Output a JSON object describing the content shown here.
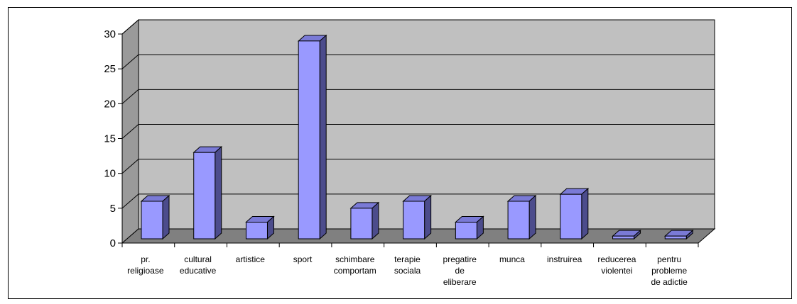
{
  "chart_data": {
    "type": "bar",
    "style": "3d-column",
    "title": "",
    "xlabel": "",
    "ylabel": "",
    "ylim": [
      0,
      30
    ],
    "yticks": [
      0,
      5,
      10,
      15,
      20,
      25,
      30
    ],
    "grid": true,
    "legend": "none",
    "categories": [
      [
        "pr.",
        "religioase"
      ],
      [
        "cultural",
        "educative"
      ],
      [
        "artistice"
      ],
      [
        "sport"
      ],
      [
        "schimbare",
        "comportam"
      ],
      [
        "terapie",
        "sociala"
      ],
      [
        "pregatire",
        "de",
        "eliberare"
      ],
      [
        "munca"
      ],
      [
        "instruirea"
      ],
      [
        "reducerea",
        "violentei"
      ],
      [
        "pentru",
        "probleme",
        "de adictie"
      ]
    ],
    "values": [
      6,
      13,
      3,
      29,
      5,
      6,
      3,
      6,
      7,
      1,
      1
    ],
    "colors": {
      "bar_front": "#9999ff",
      "bar_side": "#4c4c8c",
      "bar_top": "#7a7ad6",
      "wall": "#c0c0c0",
      "floor": "#808080",
      "side_wall": "#9a9a9a"
    }
  }
}
